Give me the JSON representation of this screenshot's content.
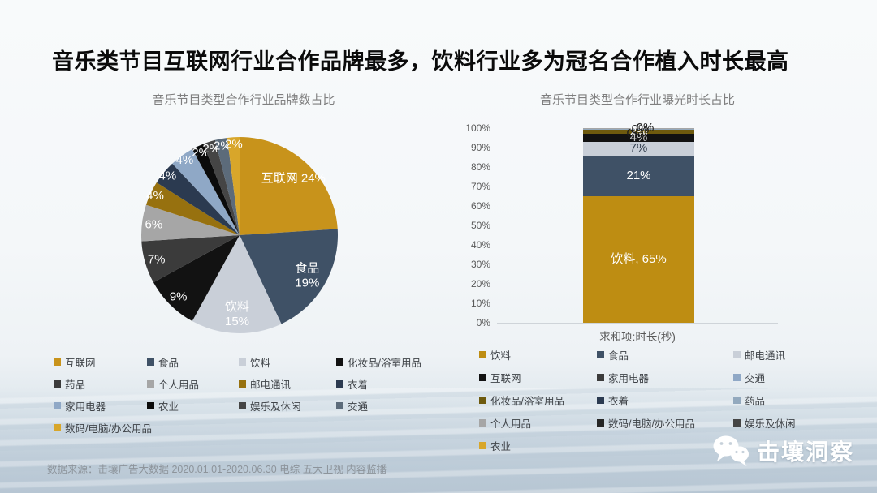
{
  "slide": {
    "title": "音乐类节目互联网行业合作品牌最多，饮料行业多为冠名合作植入时长最高",
    "footer": "数据来源：击壤广告大数据 2020.01.01-2020.06.30 电综 五大卫视 内容监播",
    "brand": "击壤洞察"
  },
  "chart_data": [
    {
      "type": "pie",
      "title": "音乐节目类型合作行业品牌数占比",
      "unit": "percent",
      "legend_position": "bottom",
      "slices": [
        {
          "name": "互联网",
          "value": 24,
          "color": "#C8931B",
          "label": "互联网 24%"
        },
        {
          "name": "食品",
          "value": 19,
          "color": "#3F5166",
          "label": "食品\n19%"
        },
        {
          "name": "饮料",
          "value": 15,
          "color": "#C9CFD8",
          "label": "饮料\n15%"
        },
        {
          "name": "化妆品/浴室用品",
          "value": 9,
          "color": "#121212",
          "label": "9%"
        },
        {
          "name": "药品",
          "value": 7,
          "color": "#3B3B3B",
          "label": "7%"
        },
        {
          "name": "个人用品",
          "value": 6,
          "color": "#A6A6A6",
          "label": "6%"
        },
        {
          "name": "邮电通讯",
          "value": 4,
          "color": "#97710F",
          "label": "4%"
        },
        {
          "name": "衣着",
          "value": 4,
          "color": "#2B3A50",
          "label": "4%"
        },
        {
          "name": "家用电器",
          "value": 4,
          "color": "#8FA8C6",
          "label": "4%"
        },
        {
          "name": "农业",
          "value": 2,
          "color": "#0B0B0B",
          "label": "2%"
        },
        {
          "name": "娱乐及休闲",
          "value": 2,
          "color": "#454545",
          "label": "2%"
        },
        {
          "name": "交通",
          "value": 2,
          "color": "#5C6B7A",
          "label": "2%"
        },
        {
          "name": "数码/电脑/办公用品",
          "value": 2,
          "color": "#D8A62A",
          "label": "2%"
        }
      ]
    },
    {
      "type": "bar",
      "subtype": "stacked-column",
      "title": "音乐节目类型合作行业曝光时长占比",
      "xlabel": "求和项:时长(秒)",
      "ylim": [
        0,
        100
      ],
      "yticks": [
        "0%",
        "10%",
        "20%",
        "30%",
        "40%",
        "50%",
        "60%",
        "70%",
        "80%",
        "90%",
        "100%"
      ],
      "grid": false,
      "legend_position": "bottom",
      "segments": [
        {
          "name": "饮料",
          "value": 65,
          "color": "#BE8D12",
          "label": "饮料, 65%",
          "label_color": "#ffffff",
          "label_dx": 0
        },
        {
          "name": "食品",
          "value": 21,
          "color": "#3F5166",
          "label": "21%",
          "label_color": "#ffffff",
          "label_dx": 0
        },
        {
          "name": "邮电通讯",
          "value": 7,
          "color": "#C9CFD8",
          "label": "7%",
          "label_color": "#333F4F",
          "label_dx": 0
        },
        {
          "name": "互联网",
          "value": 4,
          "color": "#121212",
          "label": "4%",
          "label_color": "#c9c9c9",
          "label_dx": 0
        },
        {
          "name": "家用电器",
          "value": 0,
          "color": "#3B3B3B",
          "label": "0%",
          "label_color": "#1a1a1a",
          "label_dx": -4
        },
        {
          "name": "交通",
          "value": 0,
          "color": "#8FA8C6",
          "label": "",
          "label_color": "#1a1a1a",
          "label_dx": 0
        },
        {
          "name": "化妆品/浴室用品",
          "value": 2,
          "color": "#6E5A0E",
          "label": "2%",
          "label_color": "#ffffff",
          "label_dx": 0
        },
        {
          "name": "衣着",
          "value": 0,
          "color": "#2B3A50",
          "label": "0%",
          "label_color": "#1a1a1a",
          "label_dx": 2
        },
        {
          "name": "药品",
          "value": 0.5,
          "color": "#93A9BE",
          "label": "",
          "label_color": "#1a1a1a",
          "label_dx": 0
        },
        {
          "name": "个人用品",
          "value": 0.5,
          "color": "#A6A6A6",
          "label": "",
          "label_color": "#1a1a1a",
          "label_dx": 0
        },
        {
          "name": "数码/电脑/办公用品",
          "value": 0,
          "color": "#262626",
          "label": "0%",
          "label_color": "#1a1a1a",
          "label_dx": 8
        },
        {
          "name": "娱乐及休闲",
          "value": 0,
          "color": "#454545",
          "label": "",
          "label_color": "#1a1a1a",
          "label_dx": 0
        },
        {
          "name": "农业",
          "value": 0,
          "color": "#D8A62A",
          "label": "",
          "label_color": "#1a1a1a",
          "label_dx": 0
        }
      ]
    }
  ]
}
